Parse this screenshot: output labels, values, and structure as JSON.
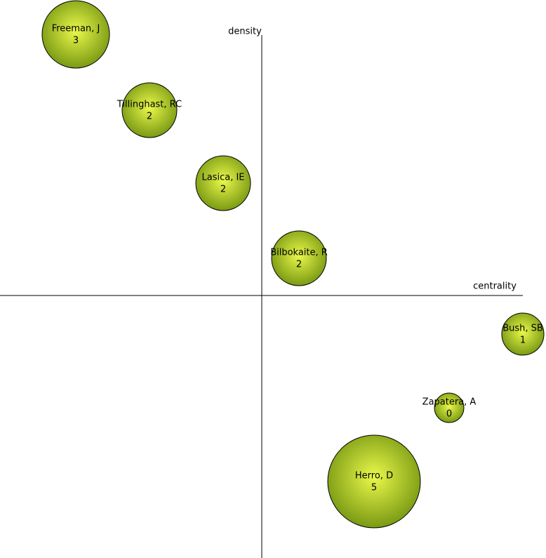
{
  "chart_data": {
    "type": "bubble",
    "x_label": "centrality",
    "y_label": "density",
    "xlim": [
      -373,
      405
    ],
    "ylim": [
      -374,
      421
    ],
    "gradient": [
      "#eaf84a",
      "#7a9a14"
    ],
    "stroke": "#000000",
    "points": [
      {
        "label": "Freeman, J",
        "x": -265,
        "y": 372,
        "size": 3
      },
      {
        "label": "Tillinghast, RC",
        "x": -160,
        "y": 264,
        "size": 2
      },
      {
        "label": "Lasica, IE",
        "x": -55,
        "y": 160,
        "size": 2
      },
      {
        "label": "Bilbokaite, R",
        "x": 53,
        "y": 53,
        "size": 2
      },
      {
        "label": "Bush, SB",
        "x": 372,
        "y": -55,
        "size": 1
      },
      {
        "label": "Zapatera, A",
        "x": 267,
        "y": -160,
        "size": 0
      },
      {
        "label": "Herro, D",
        "x": 160,
        "y": -265,
        "size": 5
      }
    ]
  }
}
